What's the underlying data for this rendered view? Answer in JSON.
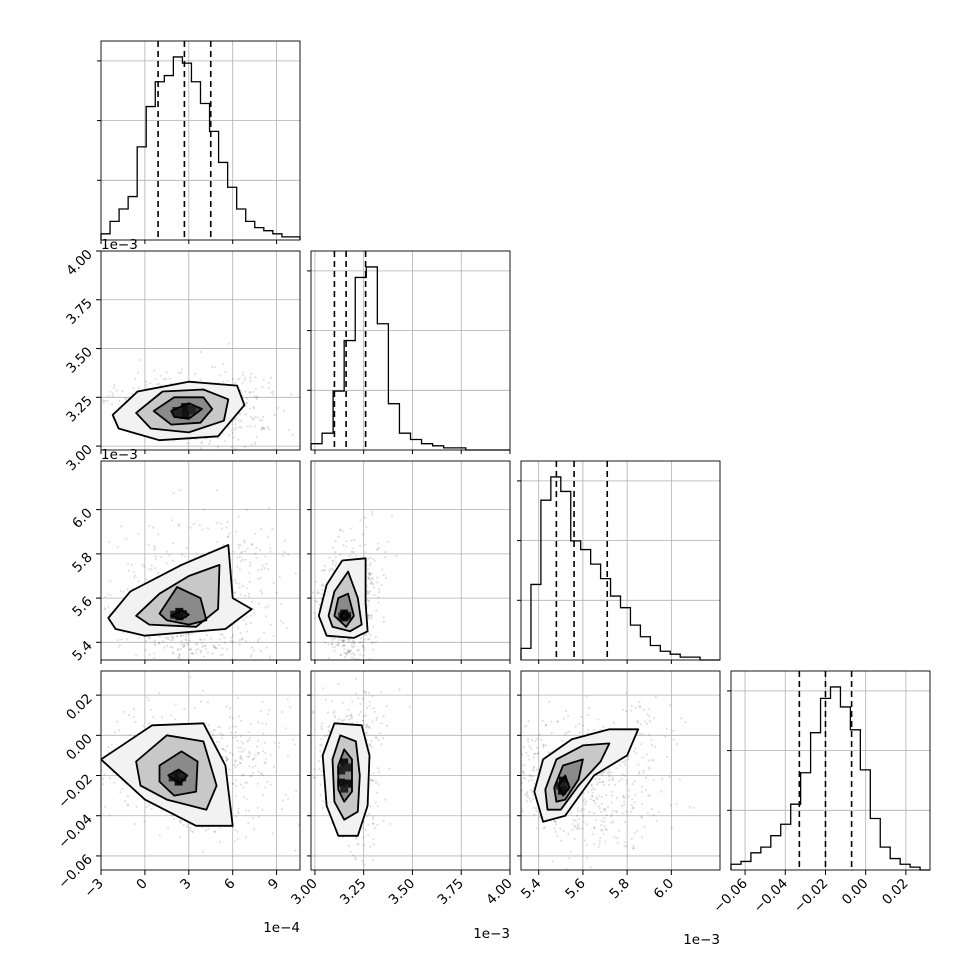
{
  "chart_data": {
    "type": "scatter",
    "variables": [
      {
        "range": [
          -3,
          10.6
        ],
        "ticks": [
          -3,
          0,
          3,
          6,
          9
        ],
        "tick_labels": [
          "−3",
          "0",
          "3",
          "6",
          "9"
        ],
        "scale_label": "1e−4"
      },
      {
        "range": [
          2.98,
          4.0
        ],
        "ticks": [
          3.0,
          3.25,
          3.5,
          3.75,
          4.0
        ],
        "tick_labels": [
          "3.00",
          "3.25",
          "3.50",
          "3.75",
          "4.00"
        ],
        "scale_label": "1e−3"
      },
      {
        "range": [
          5.32,
          6.22
        ],
        "ticks": [
          5.4,
          5.6,
          5.8,
          6.0
        ],
        "tick_labels": [
          "5.4",
          "5.6",
          "5.8",
          "6.0"
        ],
        "scale_label": "1e−3"
      },
      {
        "range": [
          -0.067,
          0.032
        ],
        "ticks": [
          -0.06,
          -0.04,
          -0.02,
          0.0,
          0.02
        ],
        "tick_labels": [
          "−0.06",
          "−0.04",
          "−0.02",
          "0.00",
          "0.02"
        ],
        "scale_label": ""
      }
    ],
    "quantiles": [
      [
        0.9,
        2.7,
        4.5
      ],
      [
        3.1,
        3.16,
        3.26
      ],
      [
        5.48,
        5.56,
        5.71
      ],
      [
        -0.033,
        -0.02,
        -0.007
      ]
    ],
    "histograms": [
      [
        2,
        6,
        10,
        14,
        30,
        43,
        51,
        53,
        59,
        57,
        51,
        44,
        35,
        25,
        17,
        10,
        6,
        4,
        3,
        2,
        1,
        1
      ],
      [
        3,
        8,
        28,
        52,
        82,
        87,
        60,
        22,
        8,
        5,
        3,
        2,
        1,
        1,
        0,
        0,
        0,
        0
      ],
      [
        4,
        26,
        55,
        63,
        58,
        41,
        38,
        33,
        28,
        22,
        18,
        12,
        8,
        5,
        3,
        2,
        1,
        1,
        0,
        0
      ],
      [
        2,
        3,
        6,
        8,
        12,
        16,
        23,
        34,
        48,
        60,
        64,
        57,
        49,
        35,
        18,
        8,
        4,
        2,
        1,
        0
      ]
    ],
    "pairs": [
      {
        "x": 0,
        "y": 1,
        "center": [
          2.5,
          3.18
        ],
        "contours": [
          [
            [
              -2.2,
              3.16
            ],
            [
              -0.5,
              3.28
            ],
            [
              3.0,
              3.33
            ],
            [
              6.3,
              3.31
            ],
            [
              6.8,
              3.21
            ],
            [
              5.0,
              3.05
            ],
            [
              1.0,
              3.03
            ],
            [
              -1.8,
              3.09
            ]
          ],
          [
            [
              -0.6,
              3.17
            ],
            [
              1.2,
              3.28
            ],
            [
              4.0,
              3.29
            ],
            [
              5.7,
              3.24
            ],
            [
              5.4,
              3.13
            ],
            [
              3.0,
              3.07
            ],
            [
              0.4,
              3.09
            ]
          ],
          [
            [
              0.6,
              3.18
            ],
            [
              2.0,
              3.25
            ],
            [
              4.0,
              3.25
            ],
            [
              4.6,
              3.19
            ],
            [
              3.8,
              3.12
            ],
            [
              1.8,
              3.11
            ]
          ],
          [
            [
              1.8,
              3.18
            ],
            [
              3.0,
              3.22
            ],
            [
              3.9,
              3.19
            ],
            [
              3.0,
              3.14
            ],
            [
              2.0,
              3.15
            ]
          ]
        ]
      },
      {
        "x": 0,
        "y": 2,
        "center": [
          2.2,
          5.53
        ],
        "contours": [
          [
            [
              -2.5,
              5.51
            ],
            [
              -1.0,
              5.63
            ],
            [
              2.5,
              5.75
            ],
            [
              5.7,
              5.84
            ],
            [
              6.0,
              5.6
            ],
            [
              7.3,
              5.55
            ],
            [
              5.5,
              5.46
            ],
            [
              0.0,
              5.43
            ],
            [
              -2.0,
              5.46
            ]
          ],
          [
            [
              -0.6,
              5.52
            ],
            [
              1.0,
              5.62
            ],
            [
              3.0,
              5.7
            ],
            [
              5.1,
              5.75
            ],
            [
              5.0,
              5.55
            ],
            [
              3.5,
              5.47
            ],
            [
              0.3,
              5.48
            ]
          ],
          [
            [
              1.0,
              5.53
            ],
            [
              2.2,
              5.65
            ],
            [
              3.8,
              5.6
            ],
            [
              4.2,
              5.5
            ],
            [
              3.0,
              5.48
            ],
            [
              1.5,
              5.5
            ]
          ],
          [
            [
              1.8,
              5.52
            ],
            [
              2.5,
              5.545
            ],
            [
              3.0,
              5.525
            ],
            [
              2.5,
              5.505
            ]
          ]
        ]
      },
      {
        "x": 0,
        "y": 3,
        "center": [
          2.2,
          -0.022
        ],
        "contours": [
          [
            [
              -3.0,
              -0.012
            ],
            [
              0.5,
              0.005
            ],
            [
              4.0,
              0.006
            ],
            [
              5.5,
              -0.015
            ],
            [
              6.0,
              -0.045
            ],
            [
              3.5,
              -0.045
            ],
            [
              0.0,
              -0.032
            ]
          ],
          [
            [
              -0.6,
              -0.013
            ],
            [
              1.5,
              0.0
            ],
            [
              4.0,
              -0.003
            ],
            [
              4.9,
              -0.025
            ],
            [
              4.2,
              -0.037
            ],
            [
              1.5,
              -0.032
            ],
            [
              -0.3,
              -0.025
            ]
          ],
          [
            [
              1.0,
              -0.015
            ],
            [
              2.5,
              -0.008
            ],
            [
              3.6,
              -0.013
            ],
            [
              3.5,
              -0.028
            ],
            [
              2.0,
              -0.03
            ],
            [
              1.0,
              -0.023
            ]
          ],
          [
            [
              1.6,
              -0.02
            ],
            [
              2.3,
              -0.017
            ],
            [
              2.9,
              -0.02
            ],
            [
              2.4,
              -0.024
            ]
          ]
        ]
      },
      {
        "x": 1,
        "y": 2,
        "center": [
          3.15,
          5.52
        ],
        "contours": [
          [
            [
              3.02,
              5.52
            ],
            [
              3.06,
              5.66
            ],
            [
              3.14,
              5.77
            ],
            [
              3.26,
              5.78
            ],
            [
              3.26,
              5.58
            ],
            [
              3.27,
              5.45
            ],
            [
              3.2,
              5.42
            ],
            [
              3.06,
              5.43
            ]
          ],
          [
            [
              3.07,
              5.52
            ],
            [
              3.1,
              5.63
            ],
            [
              3.17,
              5.72
            ],
            [
              3.22,
              5.6
            ],
            [
              3.24,
              5.48
            ],
            [
              3.18,
              5.45
            ],
            [
              3.09,
              5.47
            ]
          ],
          [
            [
              3.1,
              5.52
            ],
            [
              3.12,
              5.6
            ],
            [
              3.17,
              5.62
            ],
            [
              3.2,
              5.52
            ],
            [
              3.16,
              5.47
            ]
          ],
          [
            [
              3.13,
              5.515
            ],
            [
              3.15,
              5.54
            ],
            [
              3.18,
              5.52
            ],
            [
              3.15,
              5.505
            ]
          ]
        ]
      },
      {
        "x": 1,
        "y": 3,
        "center": [
          3.15,
          -0.02
        ],
        "contours": [
          [
            [
              3.04,
              -0.01
            ],
            [
              3.1,
              0.006
            ],
            [
              3.24,
              0.005
            ],
            [
              3.28,
              -0.01
            ],
            [
              3.27,
              -0.035
            ],
            [
              3.22,
              -0.05
            ],
            [
              3.12,
              -0.05
            ],
            [
              3.06,
              -0.035
            ]
          ],
          [
            [
              3.09,
              -0.012
            ],
            [
              3.13,
              0.0
            ],
            [
              3.21,
              -0.003
            ],
            [
              3.23,
              -0.02
            ],
            [
              3.22,
              -0.038
            ],
            [
              3.15,
              -0.042
            ],
            [
              3.1,
              -0.033
            ]
          ],
          [
            [
              3.12,
              -0.015
            ],
            [
              3.15,
              -0.007
            ],
            [
              3.19,
              -0.012
            ],
            [
              3.19,
              -0.028
            ],
            [
              3.15,
              -0.033
            ],
            [
              3.12,
              -0.027
            ]
          ]
        ]
      },
      {
        "x": 2,
        "y": 3,
        "center": [
          5.5,
          -0.025
        ],
        "contours": [
          [
            [
              5.38,
              -0.028
            ],
            [
              5.42,
              -0.012
            ],
            [
              5.55,
              -0.002
            ],
            [
              5.72,
              0.003
            ],
            [
              5.85,
              0.003
            ],
            [
              5.8,
              -0.01
            ],
            [
              5.65,
              -0.02
            ],
            [
              5.52,
              -0.04
            ],
            [
              5.42,
              -0.043
            ]
          ],
          [
            [
              5.43,
              -0.027
            ],
            [
              5.48,
              -0.012
            ],
            [
              5.6,
              -0.005
            ],
            [
              5.72,
              -0.004
            ],
            [
              5.68,
              -0.013
            ],
            [
              5.58,
              -0.025
            ],
            [
              5.5,
              -0.037
            ],
            [
              5.44,
              -0.037
            ]
          ],
          [
            [
              5.47,
              -0.026
            ],
            [
              5.51,
              -0.015
            ],
            [
              5.6,
              -0.012
            ],
            [
              5.58,
              -0.022
            ],
            [
              5.52,
              -0.032
            ],
            [
              5.48,
              -0.033
            ]
          ],
          [
            [
              5.49,
              -0.025
            ],
            [
              5.52,
              -0.02
            ],
            [
              5.54,
              -0.026
            ],
            [
              5.51,
              -0.03
            ]
          ]
        ]
      }
    ]
  }
}
